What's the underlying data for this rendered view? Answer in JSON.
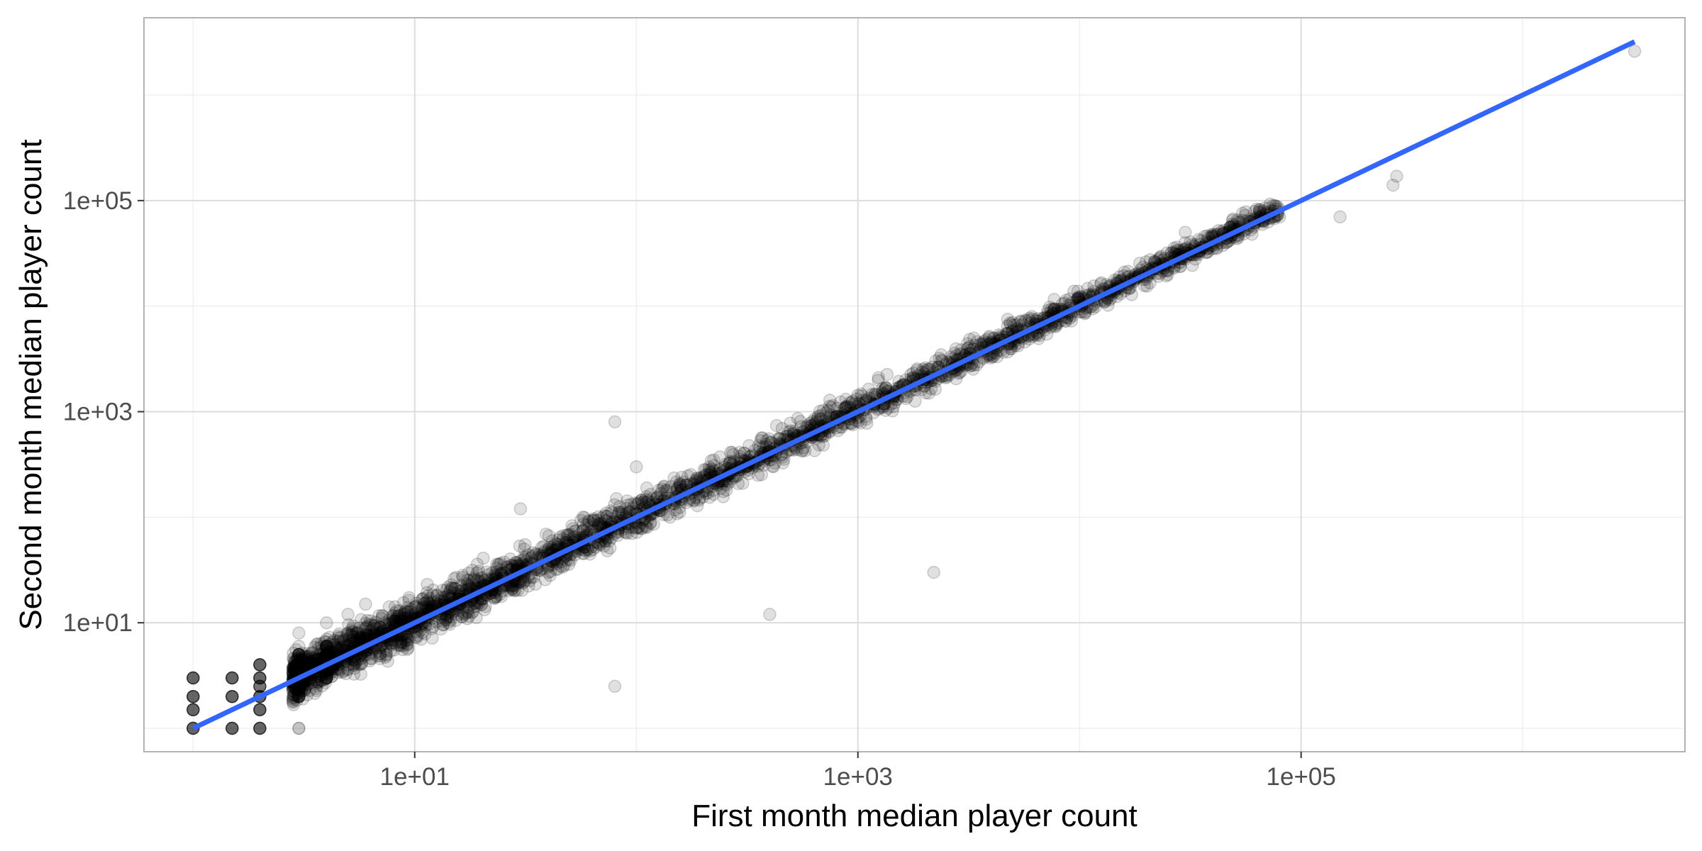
{
  "chart_data": {
    "type": "scatter",
    "title": "",
    "xlabel": "First month median player count",
    "ylabel": "Second month median player count",
    "x_scale": "log10",
    "y_scale": "log10",
    "xlim": [
      0.6,
      5400000
    ],
    "ylim": [
      0.6,
      5400000
    ],
    "x_ticks": [
      10,
      1000,
      100000
    ],
    "x_tick_labels": [
      "1e+01",
      "1e+03",
      "1e+05"
    ],
    "y_ticks": [
      10,
      1000,
      100000
    ],
    "y_tick_labels": [
      "1e+01",
      "1e+03",
      "1e+05"
    ],
    "grid": true,
    "legend": "none",
    "point_color": "#000000",
    "point_alpha": 0.12,
    "fit_line_color": "#3366FF",
    "series": [
      {
        "kind": "points",
        "note_points": "representative sample of the dense point cloud (x, y in player counts)",
        "points": [
          [
            1,
            1
          ],
          [
            1,
            1.5
          ],
          [
            1,
            2
          ],
          [
            1,
            3
          ],
          [
            1.5,
            1
          ],
          [
            1.5,
            2
          ],
          [
            1.5,
            3
          ],
          [
            2,
            1
          ],
          [
            2,
            1.5
          ],
          [
            2,
            2
          ],
          [
            2,
            3
          ],
          [
            2,
            4
          ],
          [
            3,
            2
          ],
          [
            3,
            3
          ],
          [
            3,
            4
          ],
          [
            3,
            5
          ],
          [
            3,
            6
          ],
          [
            3,
            1
          ],
          [
            3,
            8
          ],
          [
            4,
            3
          ],
          [
            4,
            4
          ],
          [
            4,
            5
          ],
          [
            4,
            6
          ],
          [
            4,
            7
          ],
          [
            4,
            10
          ],
          [
            5,
            4
          ],
          [
            5,
            5
          ],
          [
            5,
            6
          ],
          [
            5,
            8
          ],
          [
            5,
            12
          ],
          [
            6,
            5
          ],
          [
            6,
            6
          ],
          [
            6,
            7
          ],
          [
            6,
            9
          ],
          [
            6,
            15
          ],
          [
            7,
            6
          ],
          [
            7,
            7
          ],
          [
            7,
            9
          ],
          [
            8,
            7
          ],
          [
            8,
            8
          ],
          [
            8,
            10
          ],
          [
            9,
            8
          ],
          [
            9,
            10
          ],
          [
            9,
            12
          ],
          [
            10,
            9
          ],
          [
            10,
            11
          ],
          [
            10,
            14
          ],
          [
            12,
            11
          ],
          [
            12,
            13
          ],
          [
            14,
            12
          ],
          [
            14,
            15
          ],
          [
            16,
            14
          ],
          [
            16,
            18
          ],
          [
            20,
            17
          ],
          [
            20,
            22
          ],
          [
            25,
            22
          ],
          [
            25,
            28
          ],
          [
            30,
            26
          ],
          [
            30,
            34
          ],
          [
            40,
            35
          ],
          [
            40,
            45
          ],
          [
            50,
            44
          ],
          [
            50,
            55
          ],
          [
            60,
            52
          ],
          [
            60,
            70
          ],
          [
            80,
            70
          ],
          [
            80,
            90
          ],
          [
            100,
            88
          ],
          [
            100,
            110
          ],
          [
            130,
            115
          ],
          [
            130,
            140
          ],
          [
            160,
            140
          ],
          [
            160,
            180
          ],
          [
            200,
            175
          ],
          [
            200,
            220
          ],
          [
            250,
            220
          ],
          [
            250,
            280
          ],
          [
            320,
            280
          ],
          [
            320,
            350
          ],
          [
            400,
            350
          ],
          [
            400,
            450
          ],
          [
            500,
            440
          ],
          [
            500,
            560
          ],
          [
            650,
            560
          ],
          [
            650,
            720
          ],
          [
            800,
            700
          ],
          [
            800,
            900
          ],
          [
            1000,
            880
          ],
          [
            1000,
            1100
          ],
          [
            1300,
            1100
          ],
          [
            1300,
            1450
          ],
          [
            1600,
            1400
          ],
          [
            1600,
            1800
          ],
          [
            2000,
            1750
          ],
          [
            2000,
            2300
          ],
          [
            2500,
            2200
          ],
          [
            2500,
            2800
          ],
          [
            3200,
            2700
          ],
          [
            3200,
            3600
          ],
          [
            4000,
            3500
          ],
          [
            4000,
            4500
          ],
          [
            5000,
            4400
          ],
          [
            5000,
            5800
          ],
          [
            6500,
            5500
          ],
          [
            6500,
            7200
          ],
          [
            8000,
            7000
          ],
          [
            8000,
            9000
          ],
          [
            10000,
            8800
          ],
          [
            10000,
            11500
          ],
          [
            13000,
            11000
          ],
          [
            13000,
            14500
          ],
          [
            16000,
            14000
          ],
          [
            20000,
            18000
          ],
          [
            25000,
            22000
          ],
          [
            30000,
            28000
          ],
          [
            40000,
            35000
          ],
          [
            50000,
            45000
          ],
          [
            60000,
            48000
          ],
          [
            80000,
            70000
          ],
          [
            150000,
            70000
          ],
          [
            260000,
            140000
          ],
          [
            270000,
            170000
          ],
          [
            3200000,
            2600000
          ],
          [
            30,
            120
          ],
          [
            80,
            800
          ],
          [
            100,
            300
          ],
          [
            400,
            12
          ],
          [
            2200,
            30
          ],
          [
            2000,
            2000
          ],
          [
            80,
            2.5
          ],
          [
            1100,
            1100
          ],
          [
            15000,
            17000
          ],
          [
            30000,
            50000
          ],
          [
            5000,
            7000
          ],
          [
            40,
            30
          ],
          [
            20,
            15
          ],
          [
            60,
            60
          ],
          [
            3,
            1
          ]
        ]
      },
      {
        "kind": "fit_line",
        "name": "",
        "x": [
          1,
          3200000
        ],
        "y": [
          1,
          3200000
        ]
      }
    ]
  }
}
